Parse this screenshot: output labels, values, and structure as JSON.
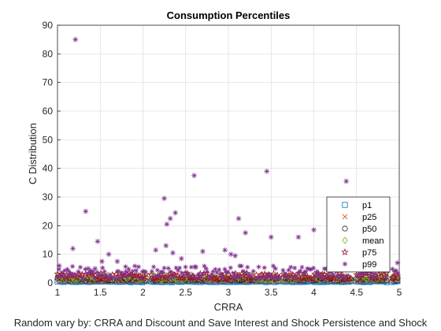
{
  "chart_data": {
    "type": "scatter",
    "title": "Consumption Percentiles",
    "xlabel": "CRRA",
    "ylabel": "C Distribution",
    "caption": "Random vary by: CRRA and Discount and Save Interest and Shock Persistence and Shock",
    "xlim": [
      1,
      5
    ],
    "ylim": [
      0,
      90
    ],
    "xticks": [
      "1",
      "1.5",
      "2",
      "2.5",
      "3",
      "3.5",
      "4",
      "4.5",
      "5"
    ],
    "yticks": [
      "0",
      "10",
      "20",
      "30",
      "40",
      "50",
      "60",
      "70",
      "80",
      "90"
    ],
    "grid": true,
    "legend_position": "bottom-right",
    "x_gaps": [
      [
        1.3,
        1.33
      ],
      [
        1.65,
        1.68
      ],
      [
        2.05,
        2.08
      ],
      [
        3.3,
        3.33
      ],
      [
        3.6,
        3.63
      ],
      [
        4.45,
        4.48
      ],
      [
        4.85,
        4.9
      ]
    ],
    "series": [
      {
        "name": "p1",
        "marker": "square",
        "color": "#0072BD",
        "band": [
          0.2,
          0.6
        ]
      },
      {
        "name": "p25",
        "marker": "x",
        "color": "#D95319",
        "band": [
          0.5,
          1.2
        ]
      },
      {
        "name": "p50",
        "marker": "circle",
        "color": "#202020",
        "band": [
          0.8,
          1.8
        ]
      },
      {
        "name": "mean",
        "marker": "diamond",
        "color": "#77AC30",
        "band": [
          1.0,
          3.0
        ]
      },
      {
        "name": "p75",
        "marker": "pentagram",
        "color": "#A2142F",
        "band": [
          1.2,
          3.5
        ]
      },
      {
        "name": "p99",
        "marker": "asterisk",
        "color": "#7E2F8E",
        "band": [
          1.5,
          6.0
        ],
        "outliers": [
          [
            1.02,
            6.0
          ],
          [
            1.12,
            2.5
          ],
          [
            1.21,
            85.0
          ],
          [
            1.18,
            12.0
          ],
          [
            1.33,
            25.0
          ],
          [
            1.36,
            5.0
          ],
          [
            1.44,
            5.0
          ],
          [
            1.47,
            14.5
          ],
          [
            1.52,
            7.5
          ],
          [
            1.6,
            10.0
          ],
          [
            1.7,
            7.5
          ],
          [
            1.8,
            4.0
          ],
          [
            2.15,
            11.5
          ],
          [
            2.25,
            29.5
          ],
          [
            2.27,
            13.0
          ],
          [
            2.28,
            20.5
          ],
          [
            2.32,
            22.5
          ],
          [
            2.38,
            24.5
          ],
          [
            2.35,
            10.5
          ],
          [
            2.45,
            8.5
          ],
          [
            2.6,
            37.5
          ],
          [
            2.62,
            5.5
          ],
          [
            2.7,
            11.0
          ],
          [
            2.96,
            11.5
          ],
          [
            3.03,
            10.0
          ],
          [
            3.08,
            9.5
          ],
          [
            3.12,
            22.5
          ],
          [
            3.2,
            17.5
          ],
          [
            3.45,
            39.0
          ],
          [
            3.5,
            16.0
          ],
          [
            3.55,
            5.0
          ],
          [
            3.82,
            16.0
          ],
          [
            4.0,
            18.5
          ],
          [
            4.2,
            5.5
          ],
          [
            4.38,
            35.5
          ],
          [
            4.42,
            8.0
          ],
          [
            4.6,
            19.5
          ],
          [
            4.75,
            12.0
          ],
          [
            4.8,
            5.0
          ],
          [
            4.98,
            7.0
          ]
        ]
      }
    ]
  }
}
